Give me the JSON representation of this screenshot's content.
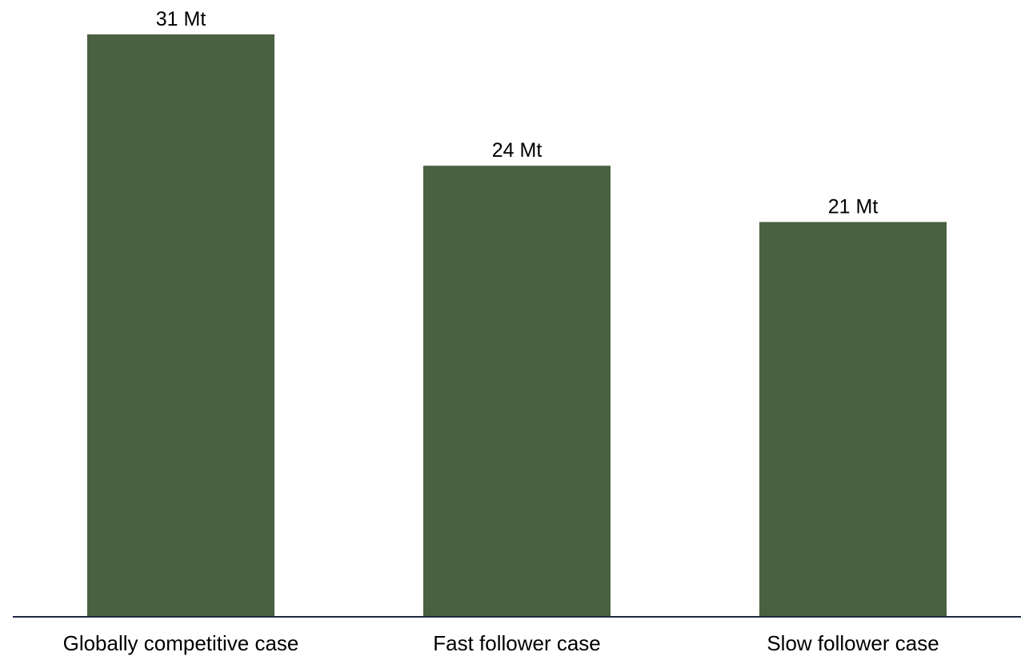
{
  "chart_data": {
    "type": "bar",
    "categories": [
      "Globally competitive case",
      "Fast follower case",
      "Slow follower case"
    ],
    "values": [
      31,
      24,
      21
    ],
    "value_labels": [
      "31 Mt",
      "24 Mt",
      "21 Mt"
    ],
    "title": "",
    "xlabel": "",
    "ylabel": "",
    "ylim": [
      0,
      33
    ],
    "grid": false,
    "legend": "none",
    "colors": {
      "bar": "#4a6041",
      "axis": "#1f2a44"
    }
  }
}
